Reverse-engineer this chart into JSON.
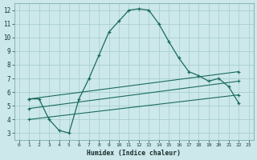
{
  "background_color": "#cce8ea",
  "grid_color": "#aacfd2",
  "line_color": "#1a6b5a",
  "xlabel": "Humidex (Indice chaleur)",
  "xlim": [
    -0.5,
    23.5
  ],
  "ylim": [
    2.5,
    12.5
  ],
  "yticks": [
    3,
    4,
    5,
    6,
    7,
    8,
    9,
    10,
    11,
    12
  ],
  "xticks": [
    0,
    1,
    2,
    3,
    4,
    5,
    6,
    7,
    8,
    9,
    10,
    11,
    12,
    13,
    14,
    15,
    16,
    17,
    18,
    19,
    20,
    21,
    22,
    23
  ],
  "series_main": {
    "x": [
      1,
      2,
      3,
      4,
      5,
      6,
      7,
      8,
      9,
      10,
      11,
      12,
      13,
      14,
      15,
      16,
      17,
      18,
      19,
      20,
      21,
      22
    ],
    "y": [
      5.5,
      5.5,
      4.0,
      3.2,
      3.0,
      5.5,
      7.0,
      8.7,
      10.4,
      11.2,
      12.0,
      12.1,
      12.0,
      11.0,
      9.7,
      8.5,
      7.5,
      7.2,
      6.8,
      7.0,
      6.4,
      5.2
    ]
  },
  "series_lines": [
    {
      "x": [
        1,
        22
      ],
      "y": [
        5.5,
        7.5
      ]
    },
    {
      "x": [
        1,
        22
      ],
      "y": [
        4.8,
        6.8
      ]
    },
    {
      "x": [
        1,
        22
      ],
      "y": [
        4.0,
        5.8
      ]
    }
  ]
}
